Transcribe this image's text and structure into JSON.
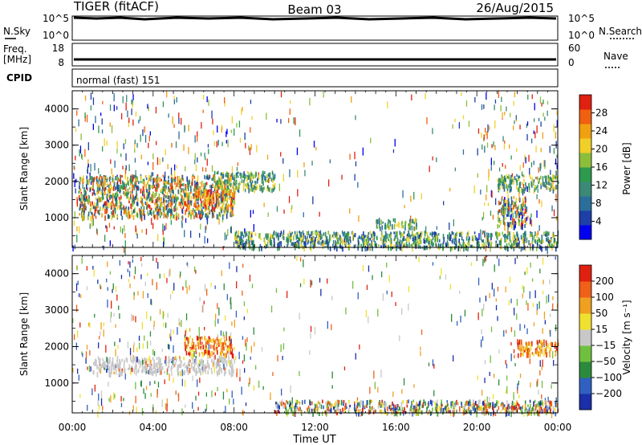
{
  "header": {
    "radar": "TIGER (fitACF)",
    "beam": "Beam 03",
    "date": "26/Aug/2015"
  },
  "status_panels": {
    "nsky_label": "N.Sky",
    "nsearch_label": "N.Search",
    "nsky_ticks": [
      "10^5",
      "10^0"
    ],
    "nsearch_ticks": [
      "10^5",
      "10^0"
    ],
    "freq_label_1": "Freq.",
    "freq_label_2": "[MHz]",
    "freq_ticks": [
      "18",
      "8"
    ],
    "nave_label": "Nave",
    "nave_ticks": [
      "60",
      "0"
    ],
    "cpid_label": "CPID",
    "cpid_text": "normal (fast) 151"
  },
  "x_axis": {
    "label": "Time UT",
    "ticks": [
      "00:00",
      "04:00",
      "08:00",
      "12:00",
      "16:00",
      "20:00",
      "00:00"
    ]
  },
  "power_panel": {
    "ylabel": "Slant Range [km]",
    "yticks": [
      "4000",
      "3000",
      "2000",
      "1000"
    ],
    "colorbar_label": "Power [dB]",
    "colorbar_ticks": [
      "28",
      "24",
      "20",
      "16",
      "12",
      "8",
      "4"
    ],
    "colors": [
      "#0000ee",
      "#1e3ea8",
      "#2c6e9a",
      "#3c8a76",
      "#2e9a4e",
      "#8cbe3c",
      "#f0d028",
      "#f0a010",
      "#f06010",
      "#e02010"
    ]
  },
  "velocity_panel": {
    "ylabel": "Slant Range [km]",
    "yticks": [
      "4000",
      "3000",
      "2000",
      "1000"
    ],
    "colorbar_label": "Velocity [m s⁻¹]",
    "colorbar_ticks": [
      "200",
      "100",
      "50",
      "15",
      "−15",
      "−50",
      "−100",
      "−200"
    ],
    "colors": [
      "#1a2fa8",
      "#3060c0",
      "#2c8a3c",
      "#70c040",
      "#c8c8c8",
      "#f0e030",
      "#f0a020",
      "#f06018",
      "#e02010"
    ]
  },
  "chart_data": {
    "type": "heatmap",
    "x_range_hours": [
      0,
      24
    ],
    "y_range_km": [
      180,
      4500
    ],
    "power_regions": [
      {
        "t0": 0.3,
        "t1": 8.0,
        "r0": 1050,
        "r1": 2200,
        "level": "mixed-high"
      },
      {
        "t0": 6.0,
        "t1": 8.0,
        "r0": 1350,
        "r1": 1800,
        "level": "high"
      },
      {
        "t0": 7.0,
        "t1": 10.0,
        "r0": 1800,
        "r1": 2300,
        "level": "medium"
      },
      {
        "t0": 8.0,
        "t1": 24.0,
        "r0": 200,
        "r1": 650,
        "level": "low-medium"
      },
      {
        "t0": 15.0,
        "t1": 17.0,
        "r0": 750,
        "r1": 1000,
        "level": "medium"
      },
      {
        "t0": 21.0,
        "t1": 22.5,
        "r0": 800,
        "r1": 1600,
        "level": "mixed"
      },
      {
        "t0": 21.0,
        "t1": 24.0,
        "r0": 1800,
        "r1": 2200,
        "level": "medium"
      }
    ],
    "velocity_regions": [
      {
        "t0": 1.0,
        "t1": 8.0,
        "r0": 1300,
        "r1": 1750,
        "level": "near-zero"
      },
      {
        "t0": 5.5,
        "t1": 8.0,
        "r0": 1800,
        "r1": 2300,
        "level": "negative"
      },
      {
        "t0": 10.0,
        "t1": 24.0,
        "r0": 200,
        "r1": 550,
        "level": "mixed"
      },
      {
        "t0": 22.0,
        "t1": 24.0,
        "r0": 1800,
        "r1": 2200,
        "level": "negative"
      }
    ]
  }
}
